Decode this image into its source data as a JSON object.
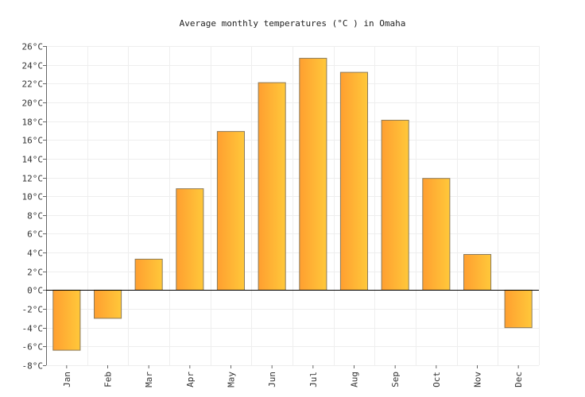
{
  "chart_data": {
    "type": "bar",
    "title": "Average monthly temperatures (°C ) in Omaha",
    "xlabel": "",
    "ylabel": "",
    "categories": [
      "Jan",
      "Feb",
      "Mar",
      "Apr",
      "May",
      "Jun",
      "Jul",
      "Aug",
      "Sep",
      "Oct",
      "Nov",
      "Dec"
    ],
    "values": [
      -6.4,
      -3.0,
      3.3,
      10.8,
      16.9,
      22.1,
      24.7,
      23.2,
      18.1,
      11.9,
      3.8,
      -4.0
    ],
    "ylim": [
      -8,
      26
    ],
    "ytick_step": 2,
    "ytick_suffix": "°C",
    "grid": true,
    "legend": "none",
    "colors": {
      "bar_gradient_start": "#ff9f30",
      "bar_gradient_end": "#ffc83a",
      "bar_stroke": "#8a7a5c",
      "grid": "#eeeeee",
      "zero_line": "#000000",
      "axis": "#666666"
    }
  }
}
